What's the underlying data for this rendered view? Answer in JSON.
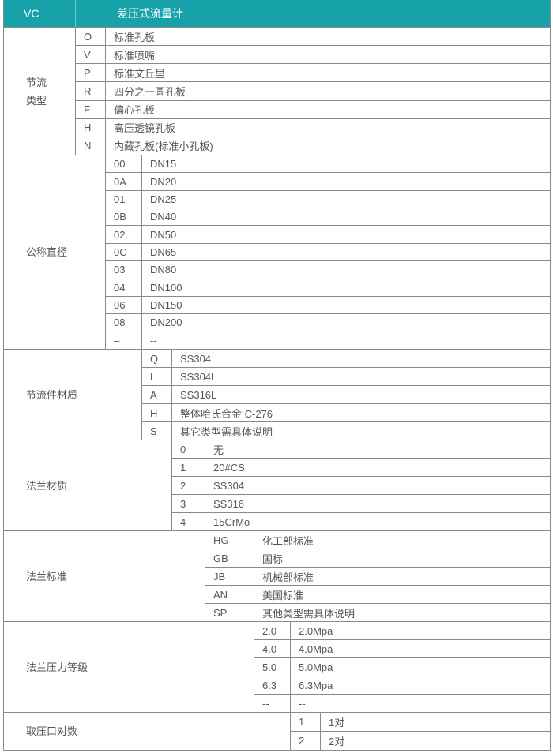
{
  "header": {
    "code": "VC",
    "title": "差压式流量计",
    "bg": "#16a2a8"
  },
  "sections": [
    {
      "label": "节流\n类型",
      "rows": [
        [
          "O",
          "标准孔板"
        ],
        [
          "V",
          "标准喷嘴"
        ],
        [
          "P",
          "标准文丘里"
        ],
        [
          "R",
          "四分之一圆孔板"
        ],
        [
          "F",
          "偏心孔板"
        ],
        [
          "H",
          "高压透镜孔板"
        ],
        [
          "N",
          "内藏孔板(标准小孔板)"
        ]
      ]
    },
    {
      "label": "公称直径",
      "rows": [
        [
          "00",
          "DN15"
        ],
        [
          "0A",
          "DN20"
        ],
        [
          "01",
          "DN25"
        ],
        [
          "0B",
          "DN40"
        ],
        [
          "02",
          "DN50"
        ],
        [
          "0C",
          "DN65"
        ],
        [
          "03",
          "DN80"
        ],
        [
          "04",
          "DN100"
        ],
        [
          "06",
          "DN150"
        ],
        [
          "08",
          "DN200"
        ],
        [
          "–",
          "--"
        ]
      ]
    },
    {
      "label": "节流件材质",
      "rows": [
        [
          "Q",
          "SS304"
        ],
        [
          "L",
          "SS304L"
        ],
        [
          "A",
          "SS316L"
        ],
        [
          "H",
          "整体哈氏合金 C-276"
        ],
        [
          "S",
          "其它类型需具体说明"
        ]
      ]
    },
    {
      "label": "法兰材质",
      "rows": [
        [
          "0",
          "无"
        ],
        [
          "1",
          "20#CS"
        ],
        [
          "2",
          "SS304"
        ],
        [
          "3",
          "SS316"
        ],
        [
          "4",
          "15CrMo"
        ]
      ]
    },
    {
      "label": "法兰标准",
      "rows": [
        [
          "HG",
          "化工部标准"
        ],
        [
          "GB",
          "国标"
        ],
        [
          "JB",
          "机械部标准"
        ],
        [
          "AN",
          "美国标准"
        ],
        [
          "SP",
          "其他类型需具体说明"
        ]
      ]
    },
    {
      "label": "法兰压力等级",
      "rows": [
        [
          "2.0",
          "2.0Mpa"
        ],
        [
          "4.0",
          "4.0Mpa"
        ],
        [
          "5.0",
          "5.0Mpa"
        ],
        [
          "6.3",
          "6.3Mpa"
        ],
        [
          "--",
          "--"
        ]
      ]
    },
    {
      "label": "取压口对数",
      "rows": [
        [
          "1",
          "1对"
        ],
        [
          "2",
          "2对"
        ]
      ]
    }
  ]
}
